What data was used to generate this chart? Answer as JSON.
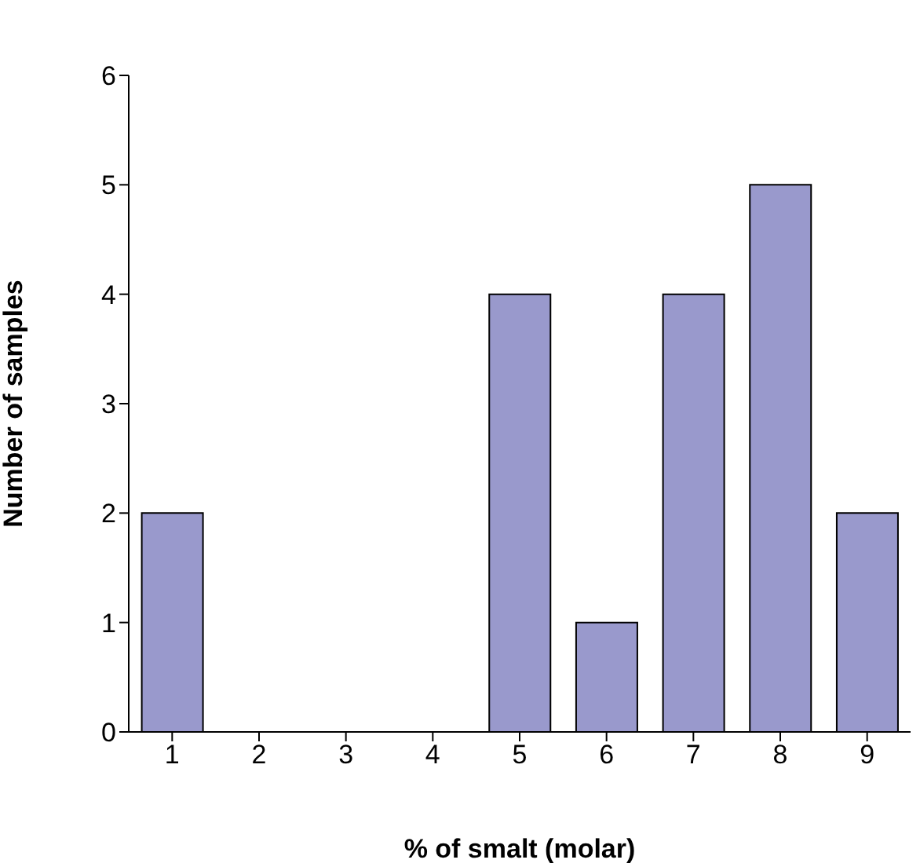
{
  "chart_data": {
    "type": "bar",
    "xlabel": "% of smalt (molar)",
    "ylabel": "Number of samples",
    "categories": [
      "1",
      "2",
      "3",
      "4",
      "5",
      "6",
      "7",
      "8",
      "9"
    ],
    "values": [
      2,
      0,
      0,
      0,
      4,
      1,
      4,
      5,
      2
    ],
    "color": "#9999cc",
    "ylim": [
      0,
      6
    ],
    "yticks": [
      0,
      1,
      2,
      3,
      4,
      5,
      6
    ],
    "grid": false,
    "legend": false
  }
}
